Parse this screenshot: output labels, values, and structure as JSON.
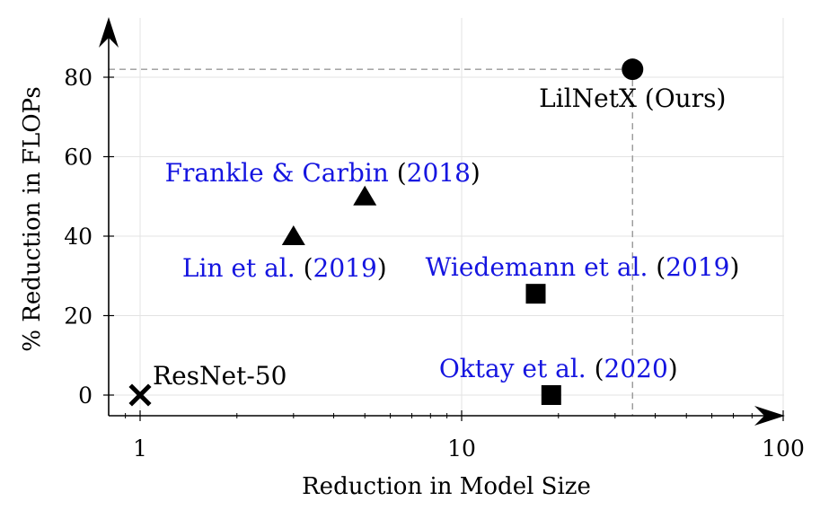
{
  "chart_data": {
    "type": "scatter",
    "xlabel": "Reduction in Model Size",
    "ylabel": "% Reduction in FLOPs",
    "x_scale": "log",
    "xlim": [
      0.9,
      100
    ],
    "ylim": [
      -5,
      92
    ],
    "x_ticks": [
      1,
      10,
      100
    ],
    "y_ticks": [
      0,
      20,
      40,
      60,
      80
    ],
    "grid": true,
    "points": [
      {
        "label_parts": [
          {
            "text": "ResNet-50",
            "style": "plain"
          }
        ],
        "x": 1,
        "y": 0,
        "marker": "cross",
        "label_pos": "above-right"
      },
      {
        "label_parts": [
          {
            "text": "Frankle & Carbin ",
            "style": "cite"
          },
          {
            "text": "(",
            "style": "paren"
          },
          {
            "text": "2018",
            "style": "cite"
          },
          {
            "text": ")",
            "style": "paren"
          }
        ],
        "x": 5,
        "y": 50,
        "marker": "triangle",
        "label_pos": "above-left"
      },
      {
        "label_parts": [
          {
            "text": "Lin et al. ",
            "style": "cite"
          },
          {
            "text": "(",
            "style": "paren"
          },
          {
            "text": "2019",
            "style": "cite"
          },
          {
            "text": ")",
            "style": "paren"
          }
        ],
        "x": 3,
        "y": 40,
        "marker": "triangle",
        "label_pos": "below"
      },
      {
        "label_parts": [
          {
            "text": "Wiedemann et al. ",
            "style": "cite"
          },
          {
            "text": "(",
            "style": "paren"
          },
          {
            "text": "2019",
            "style": "cite"
          },
          {
            "text": ")",
            "style": "paren"
          }
        ],
        "x": 17,
        "y": 25.5,
        "marker": "square",
        "label_pos": "above"
      },
      {
        "label_parts": [
          {
            "text": "Oktay et al. ",
            "style": "cite"
          },
          {
            "text": "(",
            "style": "paren"
          },
          {
            "text": "2020",
            "style": "cite"
          },
          {
            "text": ")",
            "style": "paren"
          }
        ],
        "x": 19,
        "y": 0,
        "marker": "square",
        "label_pos": "above"
      },
      {
        "label_parts": [
          {
            "text": "LilNetX (Ours)",
            "style": "plain"
          }
        ],
        "x": 34,
        "y": 82,
        "marker": "circle",
        "label_pos": "below"
      }
    ],
    "reference_lines": {
      "x": 34,
      "y": 82,
      "style": "dashed"
    }
  }
}
